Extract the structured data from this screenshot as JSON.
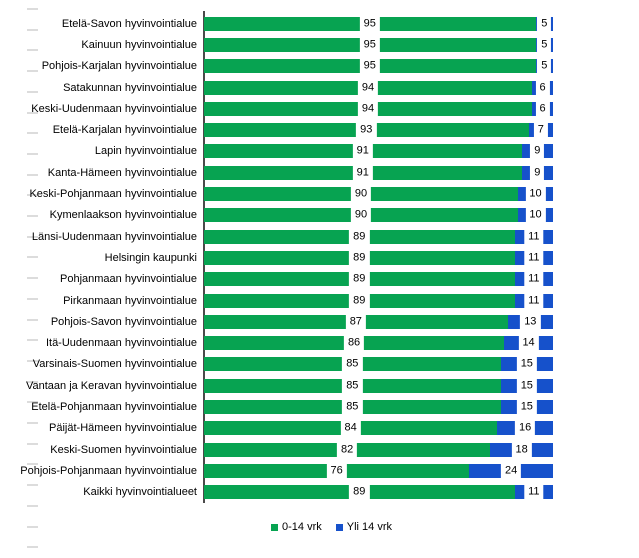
{
  "chart_data": {
    "type": "bar",
    "orientation": "horizontal",
    "stacked": true,
    "unit": "percent",
    "xlim": [
      0,
      100
    ],
    "grid": false,
    "legend_position": "bottom",
    "title": "",
    "categories": [
      "Etelä-Savon hyvinvointialue",
      "Kainuun hyvinvointialue",
      "Pohjois-Karjalan hyvinvointialue",
      "Satakunnan hyvinvointialue",
      "Keski-Uudenmaan hyvinvointialue",
      "Etelä-Karjalan hyvinvointialue",
      "Lapin hyvinvointialue",
      "Kanta-Hämeen hyvinvointialue",
      "Keski-Pohjanmaan hyvinvointialue",
      "Kymenlaakson hyvinvointialue",
      "Länsi-Uudenmaan hyvinvointialue",
      "Helsingin kaupunki",
      "Pohjanmaan hyvinvointialue",
      "Pirkanmaan hyvinvointialue",
      "Pohjois-Savon hyvinvointialue",
      "Itä-Uudenmaan hyvinvointialue",
      "Varsinais-Suomen hyvinvointialue",
      "Vantaan ja Keravan hyvinvointialue",
      "Etelä-Pohjanmaan hyvinvointialue",
      "Päijät-Hämeen hyvinvointialue",
      "Keski-Suomen hyvinvointialue",
      "Pohjois-Pohjanmaan hyvinvointialue",
      "Kaikki hyvinvointialueet"
    ],
    "series": [
      {
        "name": "0-14 vrk",
        "color": "#07A351",
        "values": [
          95,
          95,
          95,
          94,
          94,
          93,
          91,
          91,
          90,
          90,
          89,
          89,
          89,
          89,
          87,
          86,
          85,
          85,
          85,
          84,
          82,
          76,
          89
        ]
      },
      {
        "name": "Yli 14 vrk",
        "color": "#1651CB",
        "values": [
          5,
          5,
          5,
          6,
          6,
          7,
          9,
          9,
          10,
          10,
          11,
          11,
          11,
          11,
          13,
          14,
          15,
          15,
          15,
          16,
          18,
          24,
          11
        ]
      }
    ],
    "data_labels": "shown inside segments with white background boxes"
  },
  "legend": {
    "items": [
      {
        "label": "0-14 vrk",
        "color": "#07A351"
      },
      {
        "label": "Yli 14 vrk",
        "color": "#1651CB"
      }
    ]
  },
  "axis": {
    "line_color": "#4A4A4A"
  }
}
